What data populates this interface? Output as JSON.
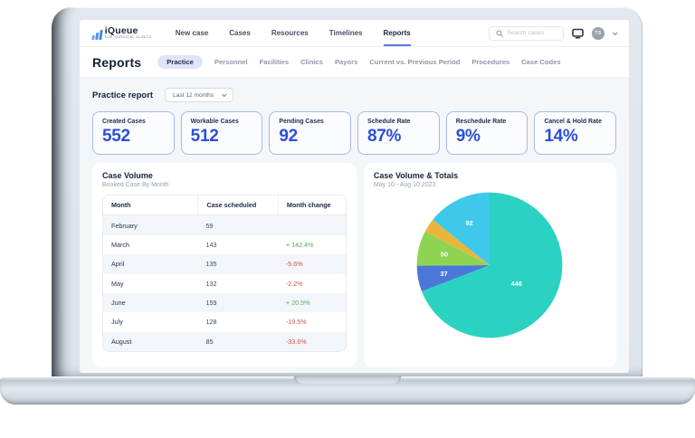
{
  "app": {
    "logo": {
      "name": "iQueue",
      "tagline": "FOR SURGICAL CLINICS"
    },
    "nav": [
      {
        "label": "New case",
        "active": false
      },
      {
        "label": "Cases",
        "active": false
      },
      {
        "label": "Resources",
        "active": false
      },
      {
        "label": "Timelines",
        "active": false
      },
      {
        "label": "Reports",
        "active": true
      }
    ],
    "search": {
      "placeholder": "Search cases"
    },
    "user": {
      "initials": "TS"
    }
  },
  "reports": {
    "title": "Reports",
    "tabs": [
      {
        "label": "Practice",
        "active": true
      },
      {
        "label": "Personnel",
        "active": false
      },
      {
        "label": "Facilities",
        "active": false
      },
      {
        "label": "Clinics",
        "active": false
      },
      {
        "label": "Payors",
        "active": false
      },
      {
        "label": "Current vs. Previous Period",
        "active": false
      },
      {
        "label": "Procedures",
        "active": false
      },
      {
        "label": "Case Codes",
        "active": false
      }
    ],
    "filter_label": "Practice report",
    "period_selected": "Last 12 months"
  },
  "stat_cards": [
    {
      "label": "Created Cases",
      "value": "552"
    },
    {
      "label": "Workable Cases",
      "value": "512"
    },
    {
      "label": "Pending Cases",
      "value": "92"
    },
    {
      "label": "Schedule Rate",
      "value": "87%"
    },
    {
      "label": "Reschedule Rate",
      "value": "9%"
    },
    {
      "label": "Cancel & Hold Rate",
      "value": "14%"
    }
  ],
  "case_volume": {
    "title": "Case Volume",
    "subtitle": "Booked Case By Month",
    "columns": [
      "Month",
      "Case scheduled",
      "Month change"
    ],
    "rows": [
      {
        "month": "February",
        "scheduled": "59",
        "change": "",
        "trend": ""
      },
      {
        "month": "March",
        "scheduled": "143",
        "change": "+ 142.4%",
        "trend": "up"
      },
      {
        "month": "April",
        "scheduled": "135",
        "change": "-5.6%",
        "trend": "down"
      },
      {
        "month": "May",
        "scheduled": "132",
        "change": "-2.2%",
        "trend": "down"
      },
      {
        "month": "June",
        "scheduled": "159",
        "change": "+ 20.5%",
        "trend": "up"
      },
      {
        "month": "July",
        "scheduled": "128",
        "change": "-19.5%",
        "trend": "down"
      },
      {
        "month": "August",
        "scheduled": "85",
        "change": "-33.6%",
        "trend": "down"
      }
    ]
  },
  "chart_data": {
    "type": "pie",
    "title": "Case Volume & Totals",
    "subtitle": "May 10 - Aug 10 2023",
    "direction": "clockwise",
    "start_angle_deg": 0,
    "legend": "none",
    "slices": [
      {
        "label": "446",
        "value": 446,
        "color": "#2bd2c2"
      },
      {
        "label": "37",
        "value": 37,
        "color": "#4a77d9"
      },
      {
        "label": "50",
        "value": 50,
        "color": "#8fd450"
      },
      {
        "label": "",
        "value": 20,
        "color": "#e9b63d"
      },
      {
        "label": "92",
        "value": 92,
        "color": "#3ec9ea"
      }
    ]
  },
  "colors": {
    "accent_blue": "#2b4fd9",
    "active_underline": "#5b79e3",
    "positive": "#58ab57",
    "negative": "#c9534e",
    "card_border": "#a9b7ee",
    "body_bg": "#f4f7fa"
  }
}
